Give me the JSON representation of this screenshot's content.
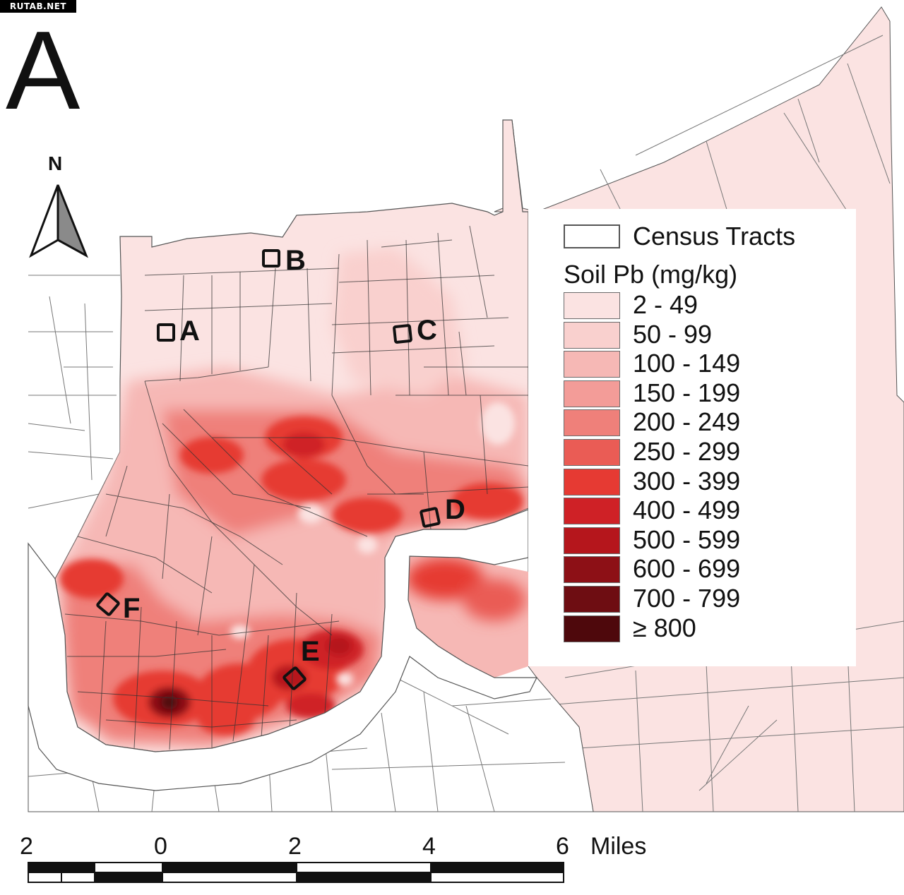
{
  "watermark": "RUTAB.NET",
  "panel_letter": "A",
  "north_label": "N",
  "legend": {
    "tracts_label": "Census Tracts",
    "title": "Soil Pb (mg/kg)",
    "classes": [
      {
        "label": "2 - 49",
        "color": "#fbe3e2"
      },
      {
        "label": "50 - 99",
        "color": "#f9d0ce"
      },
      {
        "label": "100 - 149",
        "color": "#f6b8b5"
      },
      {
        "label": "150 - 199",
        "color": "#f39c98"
      },
      {
        "label": "200 - 249",
        "color": "#ef807a"
      },
      {
        "label": "250 - 299",
        "color": "#ea5c55"
      },
      {
        "label": "300 - 399",
        "color": "#e63a33"
      },
      {
        "label": "400 - 499",
        "color": "#cf2126"
      },
      {
        "label": "500 - 599",
        "color": "#b5161c"
      },
      {
        "label": "600 - 699",
        "color": "#8d1016"
      },
      {
        "label": "700 - 799",
        "color": "#6e0d12"
      },
      {
        "label": "≥  800",
        "color": "#4e080c"
      }
    ]
  },
  "sites": [
    "A",
    "B",
    "C",
    "D",
    "E",
    "F"
  ],
  "scale_bar": {
    "ticks": [
      "2",
      "0",
      "2",
      "4",
      "6"
    ],
    "unit": "Miles"
  }
}
